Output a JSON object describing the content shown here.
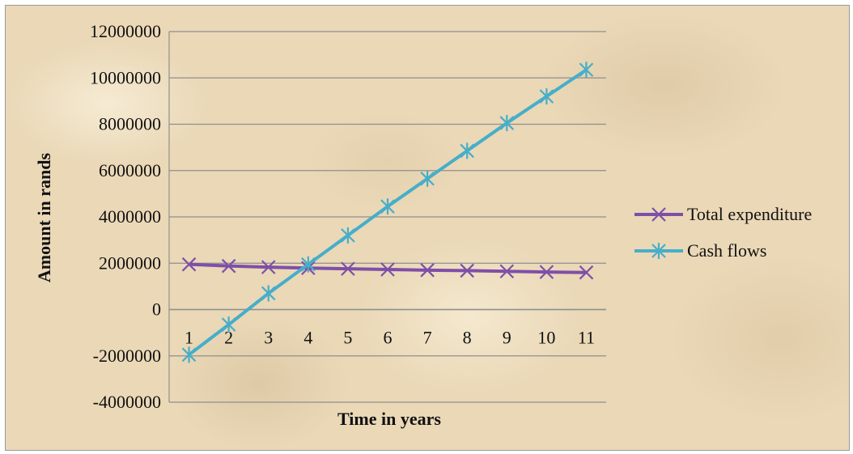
{
  "chart_data": {
    "type": "line",
    "title": "",
    "xlabel": "Time in years",
    "ylabel": "Amount in rands",
    "categories": [
      "1",
      "2",
      "3",
      "4",
      "5",
      "6",
      "7",
      "8",
      "9",
      "10",
      "11"
    ],
    "ylim": [
      -4000000,
      12000000
    ],
    "yticks": [
      "12000000",
      "10000000",
      "8000000",
      "6000000",
      "4000000",
      "2000000",
      "0",
      "-2000000",
      "-4000000"
    ],
    "grid": true,
    "legend_position": "right",
    "series": [
      {
        "name": "Total expenditure",
        "color": "#7e4fa8",
        "marker": "x",
        "values": [
          1950000,
          1880000,
          1830000,
          1790000,
          1760000,
          1730000,
          1700000,
          1680000,
          1650000,
          1620000,
          1600000
        ]
      },
      {
        "name": "Cash flows",
        "color": "#46aec9",
        "marker": "asterisk",
        "values": [
          -1950000,
          -650000,
          700000,
          1950000,
          3200000,
          4450000,
          5650000,
          6850000,
          8050000,
          9200000,
          10350000
        ]
      }
    ]
  }
}
